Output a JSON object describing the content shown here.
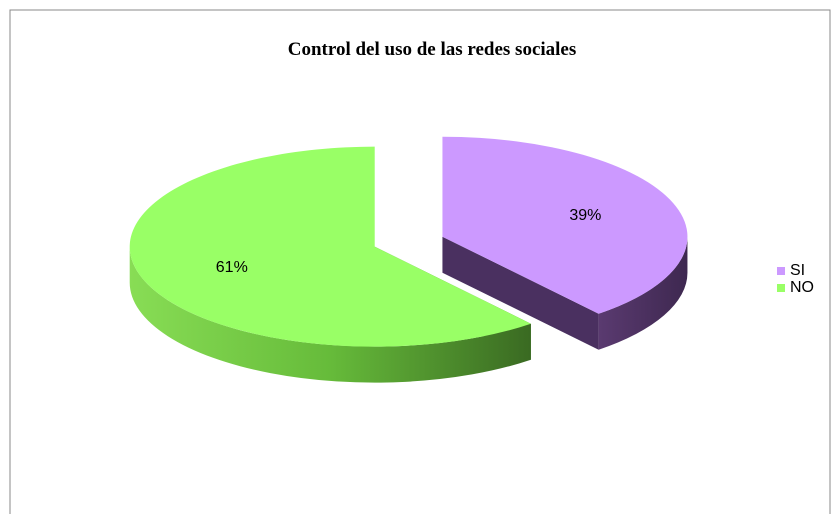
{
  "chart_data": {
    "type": "pie",
    "title": "Control del uso de las redes sociales",
    "categories": [
      "SI",
      "NO"
    ],
    "values": [
      39,
      61
    ],
    "value_labels": [
      "39%",
      "61%"
    ],
    "colors": [
      "#cc99ff",
      "#99ff66"
    ],
    "legend": "right"
  }
}
